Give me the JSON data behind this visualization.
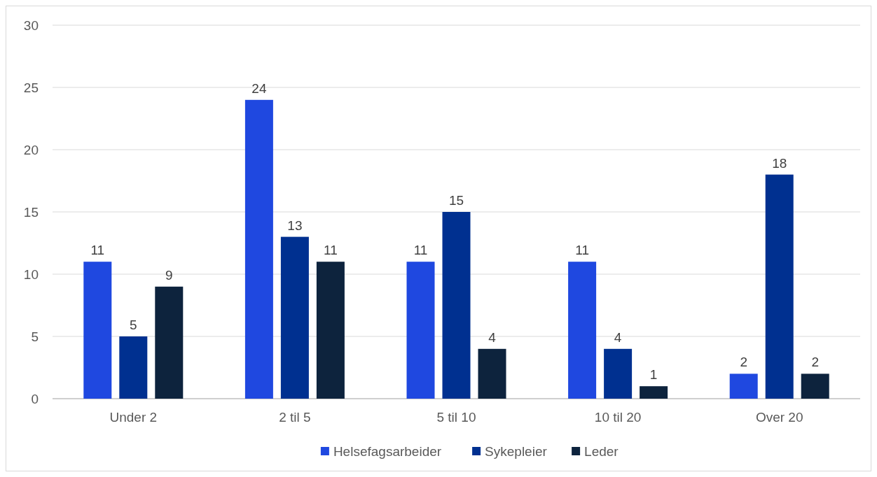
{
  "chart_data": {
    "type": "bar",
    "categories": [
      "Under 2",
      "2 til 5",
      "5 til 10",
      "10 til 20",
      "Over 20"
    ],
    "series": [
      {
        "name": "Helsefagsarbeider",
        "color": "#1f48e0",
        "values": [
          11,
          24,
          11,
          11,
          2
        ]
      },
      {
        "name": "Sykepleier",
        "color": "#003090",
        "values": [
          5,
          13,
          15,
          4,
          18
        ]
      },
      {
        "name": "Leder",
        "color": "#0d233d",
        "values": [
          9,
          11,
          4,
          1,
          2
        ]
      }
    ],
    "ylim": [
      0,
      30
    ],
    "yticks": [
      0,
      5,
      10,
      15,
      20,
      25,
      30
    ],
    "grid": "y",
    "legend": "bottom",
    "data_labels": true
  }
}
